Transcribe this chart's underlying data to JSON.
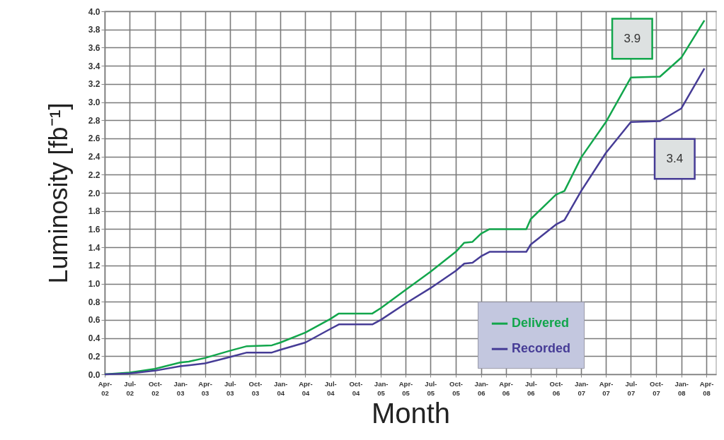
{
  "chart_data": {
    "type": "line",
    "xlabel": "Month",
    "ylabel": "Luminosity  [fb⁻¹]",
    "x": [
      "2002-04",
      "2002-07",
      "2002-10",
      "2003-01",
      "2003-02",
      "2003-04",
      "2003-07",
      "2003-09",
      "2003-12",
      "2004-01",
      "2004-04",
      "2004-07",
      "2004-08",
      "2004-12",
      "2005-01",
      "2005-04",
      "2005-07",
      "2005-10",
      "2005-11",
      "2005-12",
      "2006-01",
      "2006-02",
      "2006-06-15",
      "2006-07",
      "2006-10",
      "2006-11",
      "2007-01",
      "2007-04",
      "2007-07",
      "2007-10-15",
      "2008-01",
      "2008-03-25"
    ],
    "series": [
      {
        "name": "Delivered",
        "color": "#12a64c",
        "values": [
          0.0,
          0.02,
          0.06,
          0.13,
          0.14,
          0.18,
          0.26,
          0.31,
          0.32,
          0.35,
          0.46,
          0.61,
          0.67,
          0.67,
          0.73,
          0.93,
          1.13,
          1.35,
          1.45,
          1.46,
          1.55,
          1.6,
          1.6,
          1.71,
          1.98,
          2.02,
          2.39,
          2.78,
          3.27,
          3.28,
          3.49,
          3.9
        ]
      },
      {
        "name": "Recorded",
        "color": "#463c96",
        "values": [
          0.0,
          0.01,
          0.04,
          0.09,
          0.1,
          0.12,
          0.19,
          0.24,
          0.24,
          0.27,
          0.35,
          0.5,
          0.55,
          0.55,
          0.6,
          0.78,
          0.95,
          1.14,
          1.22,
          1.23,
          1.3,
          1.35,
          1.35,
          1.43,
          1.65,
          1.7,
          2.02,
          2.44,
          2.78,
          2.79,
          2.93,
          3.37
        ]
      }
    ],
    "annotations": [
      "3.9",
      "3.4"
    ],
    "xlim": [
      "2002-04",
      "2008-05-07"
    ],
    "xticks": [
      {
        "value": "2002-04",
        "label": "Apr-02"
      },
      {
        "value": "2002-07",
        "label": "Jul-02"
      },
      {
        "value": "2002-10",
        "label": "Oct-02"
      },
      {
        "value": "2003-01",
        "label": "Jan-03"
      },
      {
        "value": "2003-04",
        "label": "Apr-03"
      },
      {
        "value": "2003-07",
        "label": "Jul-03"
      },
      {
        "value": "2003-10",
        "label": "Oct-03"
      },
      {
        "value": "2004-01",
        "label": "Jan-04"
      },
      {
        "value": "2004-04",
        "label": "Apr-04"
      },
      {
        "value": "2004-07",
        "label": "Jul-04"
      },
      {
        "value": "2004-10",
        "label": "Oct-04"
      },
      {
        "value": "2005-01",
        "label": "Jan-05"
      },
      {
        "value": "2005-04",
        "label": "Apr-05"
      },
      {
        "value": "2005-07",
        "label": "Jul-05"
      },
      {
        "value": "2005-10",
        "label": "Oct-05"
      },
      {
        "value": "2006-01",
        "label": "Jan-06"
      },
      {
        "value": "2006-04",
        "label": "Apr-06"
      },
      {
        "value": "2006-07",
        "label": "Jul-06"
      },
      {
        "value": "2006-10",
        "label": "Oct-06"
      },
      {
        "value": "2007-01",
        "label": "Jan-07"
      },
      {
        "value": "2007-04",
        "label": "Apr-07"
      },
      {
        "value": "2007-07",
        "label": "Jul-07"
      },
      {
        "value": "2007-10",
        "label": "Oct-07"
      },
      {
        "value": "2008-01",
        "label": "Jan-08"
      },
      {
        "value": "2008-04",
        "label": "Apr-08"
      }
    ],
    "ylim": [
      0,
      4
    ],
    "yticks": [
      {
        "value": 0,
        "label": "0.0"
      },
      {
        "value": 0.2,
        "label": "0.2"
      },
      {
        "value": 0.4,
        "label": "0.4"
      },
      {
        "value": 0.6,
        "label": "0.6"
      },
      {
        "value": 0.8,
        "label": "0.8"
      },
      {
        "value": 1,
        "label": "1.0"
      },
      {
        "value": 1.2,
        "label": "1.2"
      },
      {
        "value": 1.4,
        "label": "1.4"
      },
      {
        "value": 1.6,
        "label": "1.6"
      },
      {
        "value": 1.8,
        "label": "1.8"
      },
      {
        "value": 2,
        "label": "2.0"
      },
      {
        "value": 2.2,
        "label": "2.2"
      },
      {
        "value": 2.4,
        "label": "2.4"
      },
      {
        "value": 2.6,
        "label": "2.6"
      },
      {
        "value": 2.8,
        "label": "2.8"
      },
      {
        "value": 3,
        "label": "3.0"
      },
      {
        "value": 3.2,
        "label": "3.2"
      },
      {
        "value": 3.4,
        "label": "3.4"
      },
      {
        "value": 3.6,
        "label": "3.6"
      },
      {
        "value": 3.8,
        "label": "3.8"
      },
      {
        "value": 4,
        "label": "4.0"
      }
    ],
    "grid": true,
    "legend": "bottom right",
    "line_style": "solid",
    "marker": "none"
  }
}
